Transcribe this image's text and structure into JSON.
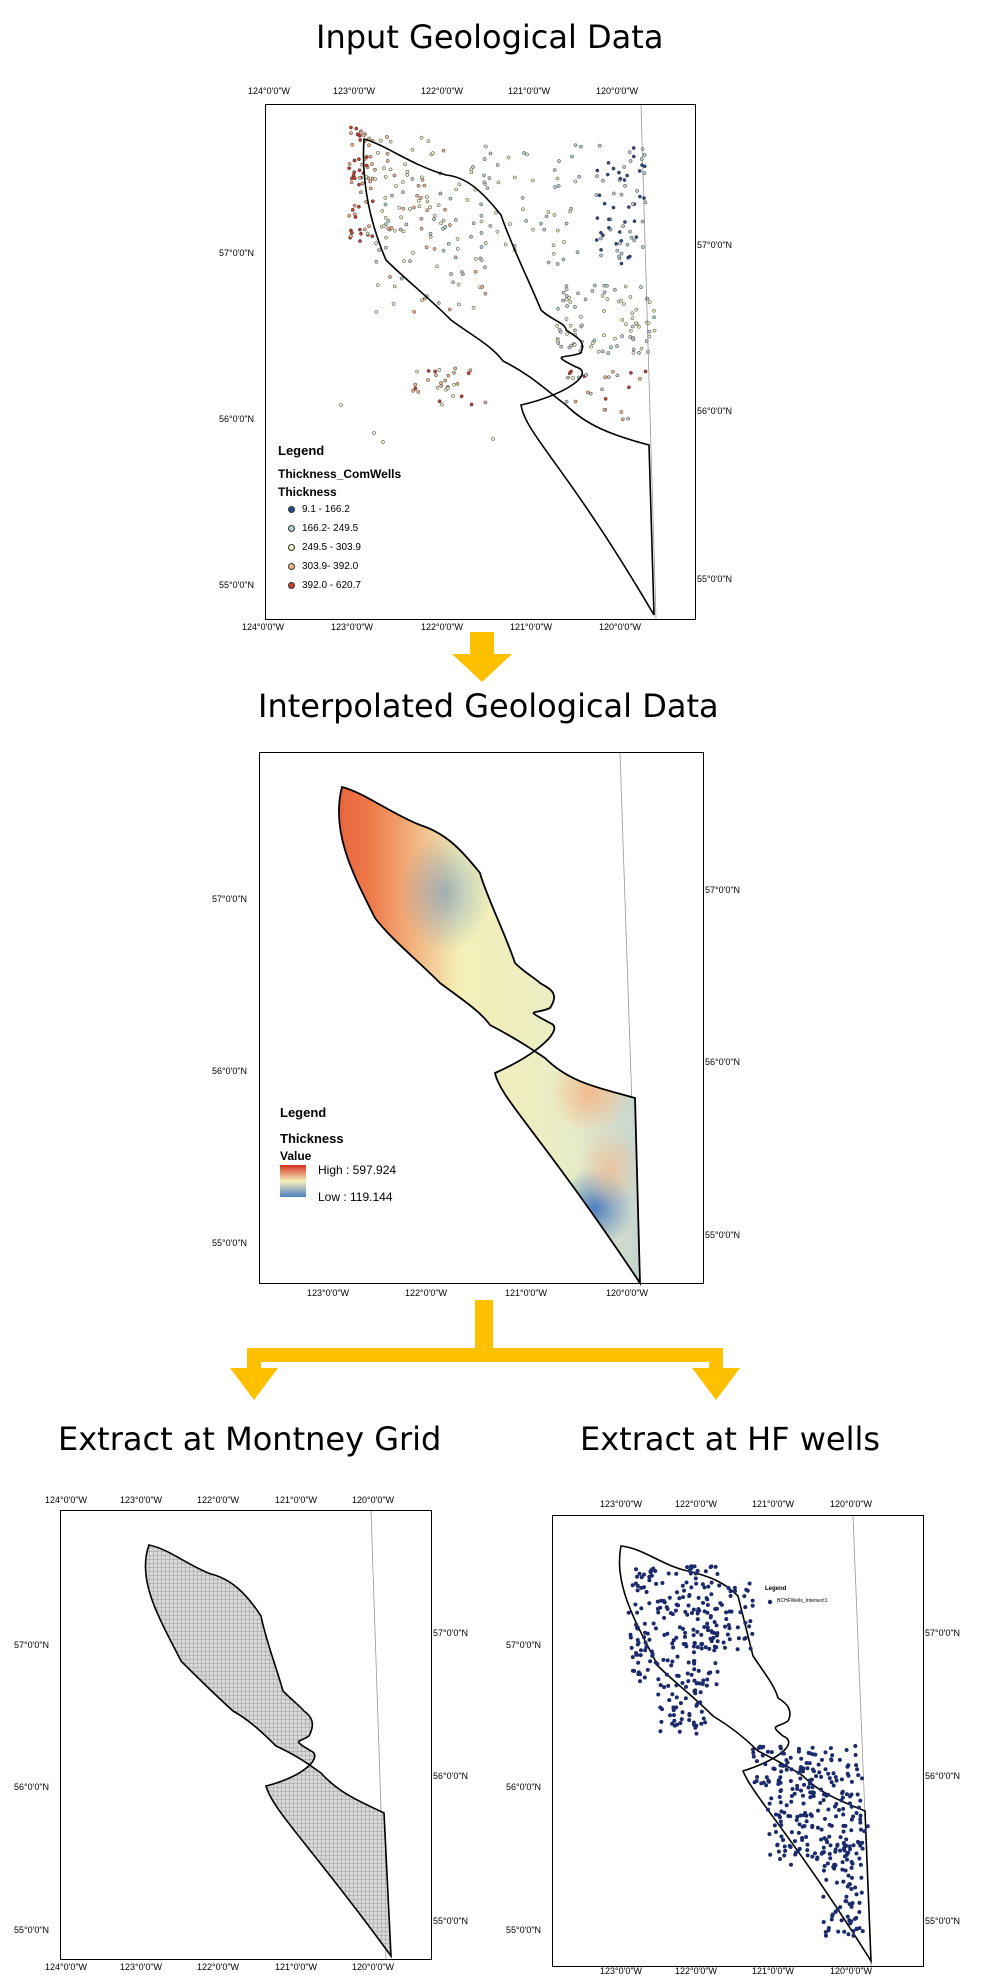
{
  "panels": {
    "input": {
      "title": "Input Geological Data",
      "lon_top": [
        "124°0'0\"W",
        "123°0'0\"W",
        "122°0'0\"W",
        "121°0'0\"W",
        "120°0'0\"W"
      ],
      "lon_bottom": [
        "124°0'0\"W",
        "123°0'0\"W",
        "122°0'0\"W",
        "121°0'0\"W",
        "120°0'0\"W"
      ],
      "lat_left": [
        "57°0'0\"N",
        "56°0'0\"N",
        "55°0'0\"N"
      ],
      "lat_right": [
        "57°0'0\"N",
        "56°0'0\"N",
        "55°0'0\"N"
      ],
      "legend": {
        "heading": "Legend",
        "layer": "Thickness_ComWells",
        "field": "Thickness",
        "classes": [
          {
            "label": "9.1 - 166.2",
            "color": "#2b4a8a"
          },
          {
            "label": "166.2- 249.5",
            "color": "#bcd3d6"
          },
          {
            "label": "249.5 - 303.9",
            "color": "#eef2c4"
          },
          {
            "label": "303.9- 392.0",
            "color": "#f2b48c"
          },
          {
            "label": "392.0 - 620.7",
            "color": "#cc3b2a"
          }
        ]
      }
    },
    "interpolated": {
      "title": "Interpolated Geological Data",
      "lon_bottom": [
        "123°0'0\"W",
        "122°0'0\"W",
        "121°0'0\"W",
        "120°0'0\"W"
      ],
      "lat_left": [
        "57°0'0\"N",
        "56°0'0\"N",
        "55°0'0\"N"
      ],
      "lat_right": [
        "57°0'0\"N",
        "56°0'0\"N",
        "55°0'0\"N"
      ],
      "legend": {
        "heading": "Legend",
        "layer": "Thickness",
        "field": "Value",
        "high": "High : 597.924",
        "low": "Low : 119.144",
        "high_color": "#d7301f",
        "mid_color": "#f5f0b8",
        "low_color": "#4f7fbf"
      }
    },
    "grid": {
      "title": "Extract at Montney Grid",
      "lon_top": [
        "124°0'0\"W",
        "123°0'0\"W",
        "122°0'0\"W",
        "121°0'0\"W",
        "120°0'0\"W"
      ],
      "lon_bottom": [
        "124°0'0\"W",
        "123°0'0\"W",
        "122°0'0\"W",
        "121°0'0\"W",
        "120°0'0\"W"
      ],
      "lat_left": [
        "57°0'0\"N",
        "56°0'0\"N",
        "55°0'0\"N"
      ],
      "lat_right": [
        "57°0'0\"N",
        "56°0'0\"N",
        "55°0'0\"N"
      ]
    },
    "hf": {
      "title": "Extract at HF wells",
      "lon_top": [
        "123°0'0\"W",
        "122°0'0\"W",
        "121°0'0\"W",
        "120°0'0\"W"
      ],
      "lon_bottom": [
        "123°0'0\"W",
        "122°0'0\"W",
        "121°0'0\"W",
        "120°0'0\"W"
      ],
      "lat_left": [
        "57°0'0\"N",
        "56°0'0\"N",
        "55°0'0\"N"
      ],
      "lat_right": [
        "57°0'0\"N",
        "56°0'0\"N",
        "55°0'0\"N"
      ],
      "legend": {
        "heading": "Legend",
        "item": "BCHFWells_Intersect1",
        "dot_color": "#1b2a6b"
      }
    }
  },
  "colors": {
    "arrow": "#ffc000",
    "outline": "#000000"
  }
}
